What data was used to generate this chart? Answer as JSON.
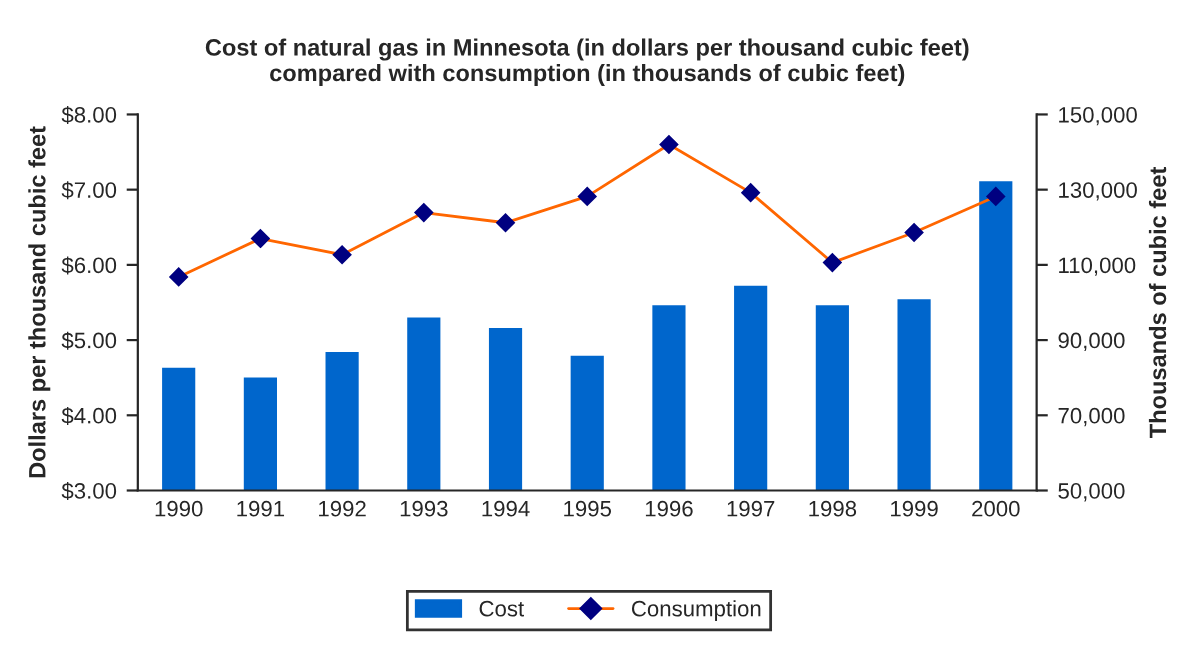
{
  "chart_data": {
    "type": "bar",
    "title": "Cost of natural gas in Minnesota (in dollars per thousand cubic feet)\ncompared with consumption (in thousands of cubic feet)",
    "categories": [
      "1990",
      "1991",
      "1992",
      "1993",
      "1994",
      "1995",
      "1996",
      "1997",
      "1998",
      "1999",
      "2000"
    ],
    "series": [
      {
        "name": "Cost",
        "color": "#0066cc",
        "values": [
          4.65,
          4.52,
          4.86,
          5.32,
          5.18,
          4.81,
          5.48,
          5.74,
          5.48,
          5.56,
          7.13
        ]
      },
      {
        "name": "Consumption",
        "type": "line",
        "axis": "y2",
        "color": "#ff6600",
        "marker": "diamond",
        "values": [
          106800,
          117000,
          112700,
          123900,
          121200,
          128200,
          142000,
          129200,
          110600,
          118600,
          128200
        ]
      }
    ],
    "ylabel": "Dollars per thousand cubic feet",
    "y2label": "Thousands of cubic feet",
    "ylim": [
      3,
      8
    ],
    "yticks": [
      {
        "value": 3,
        "label": "$3.00"
      },
      {
        "value": 4,
        "label": "$4.00"
      },
      {
        "value": 5,
        "label": "$5.00"
      },
      {
        "value": 6,
        "label": "$6.00"
      },
      {
        "value": 7,
        "label": "$7.00"
      },
      {
        "value": 8,
        "label": "$8.00"
      }
    ],
    "y2lim": [
      50000,
      150000
    ],
    "y2ticks": [
      {
        "value": 50000,
        "label": "50,000"
      },
      {
        "value": 70000,
        "label": "70,000"
      },
      {
        "value": 90000,
        "label": "90,000"
      },
      {
        "value": 110000,
        "label": "110,000"
      },
      {
        "value": 130000,
        "label": "130,000"
      },
      {
        "value": 150000,
        "label": "150,000"
      }
    ],
    "grid": false,
    "legend": "bottom"
  }
}
